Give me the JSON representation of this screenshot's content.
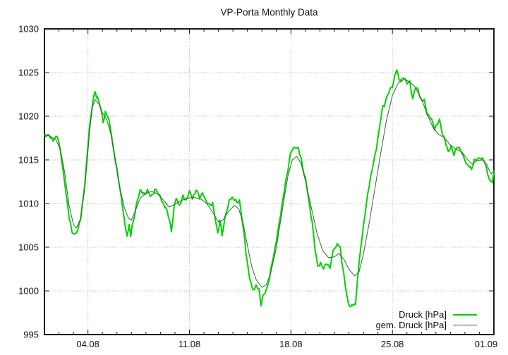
{
  "title": "VP-Porta Monthly Data",
  "chart_data": {
    "type": "line",
    "title": "VP-Porta Monthly Data",
    "x_axis": {
      "unit": "date (dd.mm)",
      "range_days": [
        0,
        31
      ],
      "start_date": "01.08",
      "major_tick_days": [
        3,
        10,
        17,
        24,
        31
      ],
      "tick_labels": [
        "04.08",
        "11.08",
        "18.08",
        "25.08",
        "01.09"
      ],
      "minor_tick_interval_days": 1
    },
    "y_axis": {
      "unit": "hPa",
      "range": [
        995,
        1030
      ],
      "ticks": [
        995,
        1000,
        1005,
        1010,
        1015,
        1020,
        1025,
        1030
      ]
    },
    "grid": {
      "style": "dotted",
      "color": "#aac6aa",
      "on_major_x": true,
      "on_major_y": true
    },
    "frame_color": "#1a1a1a",
    "text_color": "#101010",
    "legend_position": "inside bottom-right",
    "jitter": {
      "amplitude": 0.28,
      "step_days": 0.1,
      "applies_to_series": "Druck [hPa]"
    },
    "series": [
      {
        "name": "Druck [hPa]",
        "color": "#00d200",
        "stroke_width": 2,
        "style": "jagged",
        "points": [
          [
            0,
            1017.8
          ],
          [
            0.3,
            1018.0
          ],
          [
            0.6,
            1017.2
          ],
          [
            0.9,
            1017.6
          ],
          [
            1.1,
            1016.0
          ],
          [
            1.4,
            1012.5
          ],
          [
            1.7,
            1008.5
          ],
          [
            1.9,
            1006.6
          ],
          [
            2.1,
            1006.3
          ],
          [
            2.3,
            1007.0
          ],
          [
            2.5,
            1008.5
          ],
          [
            2.8,
            1012.5
          ],
          [
            3.1,
            1018.5
          ],
          [
            3.35,
            1021.8
          ],
          [
            3.5,
            1022.9
          ],
          [
            3.65,
            1022.0
          ],
          [
            3.9,
            1020.8
          ],
          [
            4.05,
            1019.4
          ],
          [
            4.2,
            1020.3
          ],
          [
            4.45,
            1019.6
          ],
          [
            4.7,
            1017.0
          ],
          [
            5.0,
            1014.0
          ],
          [
            5.3,
            1010.5
          ],
          [
            5.55,
            1007.6
          ],
          [
            5.7,
            1006.4
          ],
          [
            5.85,
            1007.4
          ],
          [
            5.95,
            1006.2
          ],
          [
            6.1,
            1007.8
          ],
          [
            6.4,
            1010.2
          ],
          [
            6.65,
            1011.6
          ],
          [
            6.9,
            1011.0
          ],
          [
            7.1,
            1011.7
          ],
          [
            7.35,
            1010.8
          ],
          [
            7.6,
            1011.5
          ],
          [
            7.85,
            1011.2
          ],
          [
            8.1,
            1010.4
          ],
          [
            8.35,
            1009.6
          ],
          [
            8.6,
            1008.3
          ],
          [
            8.75,
            1006.8
          ],
          [
            8.95,
            1009.8
          ],
          [
            9.1,
            1010.7
          ],
          [
            9.3,
            1009.9
          ],
          [
            9.55,
            1010.8
          ],
          [
            9.8,
            1010.3
          ],
          [
            10.0,
            1011.3
          ],
          [
            10.2,
            1010.6
          ],
          [
            10.45,
            1011.5
          ],
          [
            10.7,
            1010.7
          ],
          [
            10.95,
            1011.2
          ],
          [
            11.15,
            1010.4
          ],
          [
            11.4,
            1009.8
          ],
          [
            11.6,
            1010.2
          ],
          [
            11.8,
            1008.2
          ],
          [
            11.95,
            1006.6
          ],
          [
            12.1,
            1008.0
          ],
          [
            12.25,
            1006.5
          ],
          [
            12.5,
            1008.8
          ],
          [
            12.75,
            1010.3
          ],
          [
            13.0,
            1010.6
          ],
          [
            13.25,
            1010.2
          ],
          [
            13.45,
            1010.5
          ],
          [
            13.65,
            1008.0
          ],
          [
            13.9,
            1004.5
          ],
          [
            14.15,
            1001.5
          ],
          [
            14.35,
            1000.3
          ],
          [
            14.6,
            1000.5
          ],
          [
            14.8,
            1000.2
          ],
          [
            14.95,
            998.3
          ],
          [
            15.1,
            999.6
          ],
          [
            15.35,
            1000.3
          ],
          [
            15.6,
            1002.2
          ],
          [
            15.9,
            1004.8
          ],
          [
            16.2,
            1008.0
          ],
          [
            16.5,
            1011.0
          ],
          [
            16.75,
            1013.5
          ],
          [
            16.95,
            1015.6
          ],
          [
            17.1,
            1016.3
          ],
          [
            17.3,
            1016.6
          ],
          [
            17.5,
            1016.4
          ],
          [
            17.75,
            1014.8
          ],
          [
            18.0,
            1012.8
          ],
          [
            18.2,
            1010.8
          ],
          [
            18.45,
            1008.0
          ],
          [
            18.65,
            1004.9
          ],
          [
            18.85,
            1002.9
          ],
          [
            19.05,
            1003.3
          ],
          [
            19.25,
            1002.6
          ],
          [
            19.5,
            1003.2
          ],
          [
            19.7,
            1002.8
          ],
          [
            19.95,
            1004.9
          ],
          [
            20.2,
            1005.3
          ],
          [
            20.4,
            1004.9
          ],
          [
            20.55,
            1002.9
          ],
          [
            20.75,
            1000.5
          ],
          [
            20.95,
            998.5
          ],
          [
            21.2,
            998.2
          ],
          [
            21.45,
            998.4
          ],
          [
            21.6,
            1001.5
          ],
          [
            21.8,
            1004.9
          ],
          [
            22.0,
            1007.5
          ],
          [
            22.3,
            1011.0
          ],
          [
            22.6,
            1013.8
          ],
          [
            22.9,
            1016.5
          ],
          [
            23.2,
            1019.8
          ],
          [
            23.35,
            1021.2
          ],
          [
            23.5,
            1021.4
          ],
          [
            23.75,
            1022.8
          ],
          [
            24.0,
            1023.5
          ],
          [
            24.15,
            1024.4
          ],
          [
            24.3,
            1025.4
          ],
          [
            24.45,
            1024.3
          ],
          [
            24.6,
            1024.0
          ],
          [
            24.8,
            1024.3
          ],
          [
            25.0,
            1023.8
          ],
          [
            25.2,
            1024.1
          ],
          [
            25.4,
            1022.0
          ],
          [
            25.55,
            1023.2
          ],
          [
            25.75,
            1023.3
          ],
          [
            26.0,
            1021.7
          ],
          [
            26.2,
            1021.9
          ],
          [
            26.45,
            1020.0
          ],
          [
            26.7,
            1019.7
          ],
          [
            26.9,
            1018.4
          ],
          [
            27.1,
            1019.0
          ],
          [
            27.25,
            1019.6
          ],
          [
            27.45,
            1017.8
          ],
          [
            27.7,
            1016.9
          ],
          [
            27.85,
            1015.9
          ],
          [
            28.05,
            1016.7
          ],
          [
            28.25,
            1015.7
          ],
          [
            28.5,
            1016.6
          ],
          [
            28.7,
            1016.3
          ],
          [
            28.95,
            1015.2
          ],
          [
            29.2,
            1014.3
          ],
          [
            29.45,
            1013.9
          ],
          [
            29.7,
            1015.1
          ],
          [
            30.0,
            1015.3
          ],
          [
            30.3,
            1014.9
          ],
          [
            30.55,
            1013.6
          ],
          [
            30.75,
            1012.4
          ],
          [
            30.9,
            1012.6
          ],
          [
            31.0,
            1013.8
          ]
        ]
      },
      {
        "name": "gem. Druck [hPa]",
        "color": "#336633",
        "stroke_width": 1,
        "style": "smooth",
        "points": [
          [
            0,
            1017.9
          ],
          [
            0.4,
            1017.7
          ],
          [
            0.8,
            1017.3
          ],
          [
            1.1,
            1016.2
          ],
          [
            1.4,
            1013.5
          ],
          [
            1.7,
            1009.8
          ],
          [
            2.0,
            1007.6
          ],
          [
            2.2,
            1007.2
          ],
          [
            2.5,
            1008.3
          ],
          [
            2.8,
            1012.0
          ],
          [
            3.1,
            1018.0
          ],
          [
            3.3,
            1021.0
          ],
          [
            3.5,
            1021.9
          ],
          [
            3.8,
            1021.3
          ],
          [
            4.0,
            1020.4
          ],
          [
            4.3,
            1019.6
          ],
          [
            4.6,
            1017.8
          ],
          [
            4.9,
            1014.8
          ],
          [
            5.2,
            1011.8
          ],
          [
            5.5,
            1009.6
          ],
          [
            5.8,
            1008.3
          ],
          [
            6.0,
            1008.1
          ],
          [
            6.3,
            1009.3
          ],
          [
            6.6,
            1010.6
          ],
          [
            7.0,
            1011.2
          ],
          [
            7.4,
            1011.4
          ],
          [
            7.8,
            1011.1
          ],
          [
            8.2,
            1010.4
          ],
          [
            8.6,
            1009.6
          ],
          [
            9.0,
            1009.9
          ],
          [
            9.4,
            1010.3
          ],
          [
            9.8,
            1010.6
          ],
          [
            10.3,
            1010.7
          ],
          [
            10.8,
            1010.5
          ],
          [
            11.2,
            1010.0
          ],
          [
            11.6,
            1009.0
          ],
          [
            12.0,
            1007.9
          ],
          [
            12.3,
            1008.1
          ],
          [
            12.7,
            1009.1
          ],
          [
            13.1,
            1009.8
          ],
          [
            13.4,
            1009.4
          ],
          [
            13.7,
            1007.8
          ],
          [
            14.0,
            1005.2
          ],
          [
            14.3,
            1002.8
          ],
          [
            14.6,
            1001.3
          ],
          [
            15.0,
            1000.4
          ],
          [
            15.3,
            1000.7
          ],
          [
            15.6,
            1002.0
          ],
          [
            16.0,
            1005.0
          ],
          [
            16.4,
            1009.2
          ],
          [
            16.8,
            1013.2
          ],
          [
            17.1,
            1015.0
          ],
          [
            17.4,
            1015.4
          ],
          [
            17.7,
            1014.6
          ],
          [
            18.0,
            1012.6
          ],
          [
            18.4,
            1009.6
          ],
          [
            18.8,
            1006.6
          ],
          [
            19.2,
            1004.6
          ],
          [
            19.6,
            1003.8
          ],
          [
            20.0,
            1003.9
          ],
          [
            20.3,
            1004.3
          ],
          [
            20.7,
            1003.5
          ],
          [
            21.0,
            1002.5
          ],
          [
            21.4,
            1001.7
          ],
          [
            21.7,
            1002.2
          ],
          [
            22.0,
            1004.2
          ],
          [
            22.4,
            1007.8
          ],
          [
            22.8,
            1011.8
          ],
          [
            23.2,
            1015.8
          ],
          [
            23.6,
            1019.6
          ],
          [
            24.0,
            1022.4
          ],
          [
            24.4,
            1023.8
          ],
          [
            24.8,
            1024.2
          ],
          [
            25.1,
            1024.0
          ],
          [
            25.5,
            1023.5
          ],
          [
            26.0,
            1022.0
          ],
          [
            26.4,
            1020.2
          ],
          [
            26.8,
            1018.7
          ],
          [
            27.2,
            1017.9
          ],
          [
            27.6,
            1017.5
          ],
          [
            28.0,
            1016.7
          ],
          [
            28.4,
            1016.2
          ],
          [
            28.8,
            1015.9
          ],
          [
            29.2,
            1015.0
          ],
          [
            29.5,
            1014.5
          ],
          [
            29.8,
            1014.9
          ],
          [
            30.2,
            1015.0
          ],
          [
            30.5,
            1014.5
          ],
          [
            30.8,
            1013.4
          ],
          [
            31.0,
            1013.7
          ]
        ]
      }
    ]
  }
}
